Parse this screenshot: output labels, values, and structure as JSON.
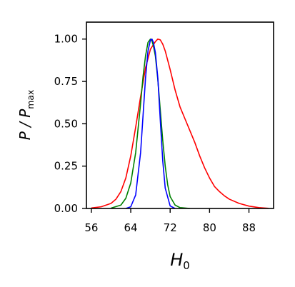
{
  "chart_data": {
    "type": "line",
    "xlabel": "H0",
    "ylabel": "P / Pmax",
    "xlim": [
      55,
      93
    ],
    "ylim": [
      0,
      1.1
    ],
    "xticks": [
      56,
      64,
      72,
      80,
      88
    ],
    "yticks": [
      0.0,
      0.25,
      0.5,
      0.75,
      1.0
    ],
    "xtick_labels": [
      "56",
      "64",
      "72",
      "80",
      "88"
    ],
    "ytick_labels": [
      "0.00",
      "0.25",
      "0.50",
      "0.75",
      "1.00"
    ],
    "grid": false,
    "legend": "none",
    "series": [
      {
        "color": "#ff0000",
        "x": [
          56,
          58,
          60,
          61,
          62,
          63,
          64,
          65,
          66,
          67,
          68,
          69,
          69.5,
          70,
          70.5,
          71,
          72,
          73,
          74,
          75,
          76,
          77,
          78,
          79,
          80,
          81,
          82,
          83,
          84,
          86,
          88,
          90,
          92
        ],
        "y": [
          0.003,
          0.01,
          0.03,
          0.055,
          0.1,
          0.18,
          0.31,
          0.48,
          0.66,
          0.83,
          0.94,
          0.985,
          1.0,
          0.995,
          0.97,
          0.93,
          0.82,
          0.7,
          0.6,
          0.53,
          0.46,
          0.39,
          0.31,
          0.24,
          0.18,
          0.13,
          0.1,
          0.075,
          0.055,
          0.03,
          0.014,
          0.005,
          0.001
        ]
      },
      {
        "color": "#008000",
        "x": [
          60,
          62,
          63,
          64,
          65,
          66,
          66.5,
          67,
          67.5,
          68,
          68.3,
          68.6,
          69,
          69.5,
          70,
          70.5,
          71,
          71.5,
          72,
          73,
          74,
          76
        ],
        "y": [
          0.002,
          0.02,
          0.06,
          0.15,
          0.33,
          0.62,
          0.78,
          0.9,
          0.98,
          1.0,
          0.99,
          0.96,
          0.9,
          0.76,
          0.58,
          0.4,
          0.25,
          0.14,
          0.07,
          0.02,
          0.005,
          0.0
        ]
      },
      {
        "color": "#0000ff",
        "x": [
          63,
          64,
          65,
          66,
          66.5,
          67,
          67.5,
          68,
          68.3,
          68.6,
          69,
          69.5,
          70,
          70.5,
          71,
          72,
          73
        ],
        "y": [
          0.0,
          0.01,
          0.08,
          0.33,
          0.55,
          0.77,
          0.93,
          0.995,
          1.0,
          0.98,
          0.92,
          0.77,
          0.52,
          0.28,
          0.12,
          0.015,
          0.0
        ]
      }
    ]
  }
}
